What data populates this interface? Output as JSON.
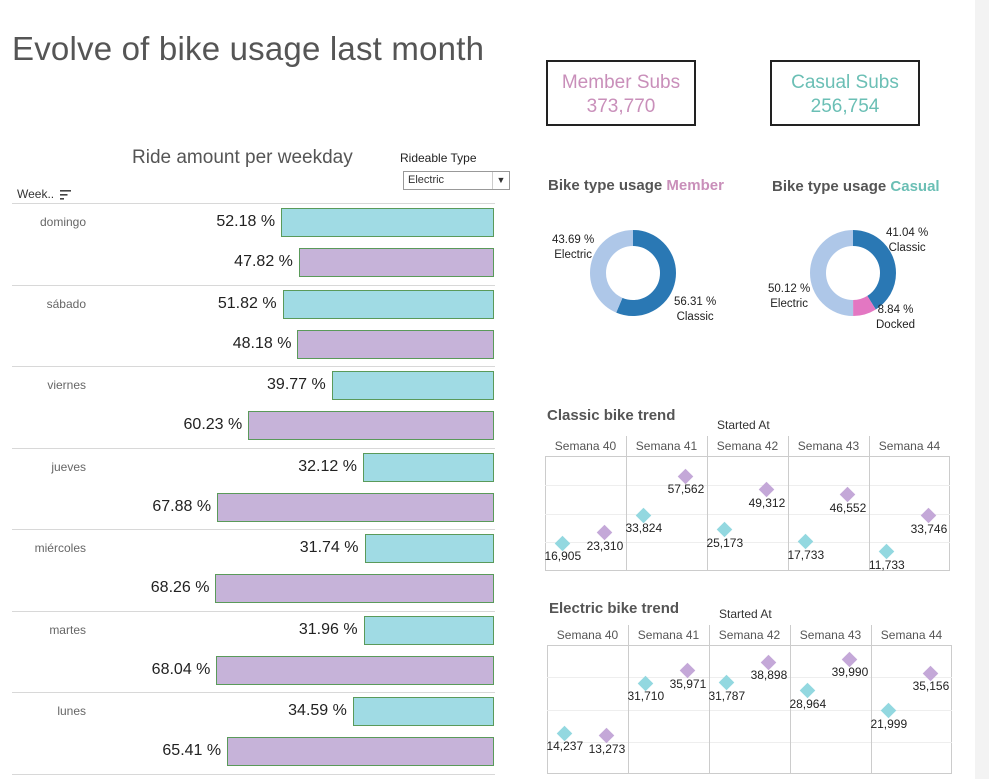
{
  "title": "Evolve of bike usage last month",
  "kpis": {
    "member_label": "Member Subs",
    "member_value": "373,770",
    "casual_label": "Casual Subs",
    "casual_value": "256,754",
    "member_color": "#c98fba",
    "casual_color": "#6bbfb5"
  },
  "bar_chart": {
    "title": "Ride amount per weekday",
    "column_header": "Week..",
    "filter": {
      "label": "Rideable Type",
      "value": "Electric"
    }
  },
  "donuts": {
    "member_title_prefix": "Bike type usage",
    "member_title_suffix": "Member",
    "casual_title_prefix": "Bike type usage",
    "casual_title_suffix": "Casual"
  },
  "trends": {
    "classic_title": "Classic bike trend",
    "electric_title": "Electric bike trend",
    "header_label": "Started At"
  },
  "chart_data": [
    {
      "type": "bar",
      "orientation": "horizontal",
      "title": "Ride amount per weekday",
      "categories": [
        "domingo",
        "sábado",
        "viernes",
        "jueves",
        "miércoles",
        "martes",
        "lunes"
      ],
      "series": [
        {
          "name": "Member",
          "color": "#a0dbe4",
          "values": [
            52.18,
            51.82,
            39.77,
            32.12,
            31.74,
            31.96,
            34.59
          ],
          "labels": [
            "52.18 %",
            "51.82 %",
            "39.77 %",
            "32.12 %",
            "31.74 %",
            "31.96 %",
            "34.59 %"
          ]
        },
        {
          "name": "Casual",
          "color": "#c6b3d9",
          "values": [
            47.82,
            48.18,
            60.23,
            67.88,
            68.26,
            68.04,
            65.41
          ],
          "labels": [
            "47.82 %",
            "48.18 %",
            "60.23 %",
            "67.88 %",
            "68.26 %",
            "68.04 %",
            "65.41 %"
          ]
        }
      ]
    },
    {
      "type": "pie",
      "title": "Bike type usage Member",
      "slices": [
        {
          "name": "Classic",
          "value": 56.31,
          "label": "56.31 %",
          "color": "#2a78b4"
        },
        {
          "name": "Electric",
          "value": 43.69,
          "label": "43.69 %",
          "color": "#aec7e8"
        }
      ]
    },
    {
      "type": "pie",
      "title": "Bike type usage Casual",
      "slices": [
        {
          "name": "Classic",
          "value": 41.04,
          "label": "41.04 %",
          "color": "#2a78b4"
        },
        {
          "name": "Docked",
          "value": 8.84,
          "label": "8.84 %",
          "color": "#e377c2"
        },
        {
          "name": "Electric",
          "value": 50.12,
          "label": "50.12 %",
          "color": "#aec7e8"
        }
      ]
    },
    {
      "type": "scatter",
      "title": "Classic bike trend",
      "columns": [
        "Semana 40",
        "Semana 41",
        "Semana 42",
        "Semana 43",
        "Semana 44"
      ],
      "ylim": [
        0,
        70000
      ],
      "series": [
        {
          "name": "Member",
          "color": "#93d8e0",
          "values": [
            16905,
            33824,
            25173,
            17733,
            11733
          ],
          "labels": [
            "16,905",
            "33,824",
            "25,173",
            "17,733",
            "11,733"
          ]
        },
        {
          "name": "Casual",
          "color": "#c4a8d8",
          "values": [
            23310,
            57562,
            49312,
            46552,
            33746
          ],
          "labels": [
            "23,310",
            "57,562",
            "49,312",
            "46,552",
            "33,746"
          ]
        }
      ]
    },
    {
      "type": "scatter",
      "title": "Electric bike trend",
      "columns": [
        "Semana 40",
        "Semana 41",
        "Semana 42",
        "Semana 43",
        "Semana 44"
      ],
      "ylim": [
        0,
        45000
      ],
      "series": [
        {
          "name": "Member",
          "color": "#93d8e0",
          "values": [
            14237,
            31710,
            31787,
            28964,
            21999
          ],
          "labels": [
            "14,237",
            "31,710",
            "31,787",
            "28,964",
            "21,999"
          ]
        },
        {
          "name": "Casual",
          "color": "#c4a8d8",
          "values": [
            13273,
            35971,
            38898,
            39990,
            35156
          ],
          "labels": [
            "13,273",
            "35,971",
            "38,898",
            "39,990",
            "35,156"
          ]
        }
      ]
    }
  ]
}
